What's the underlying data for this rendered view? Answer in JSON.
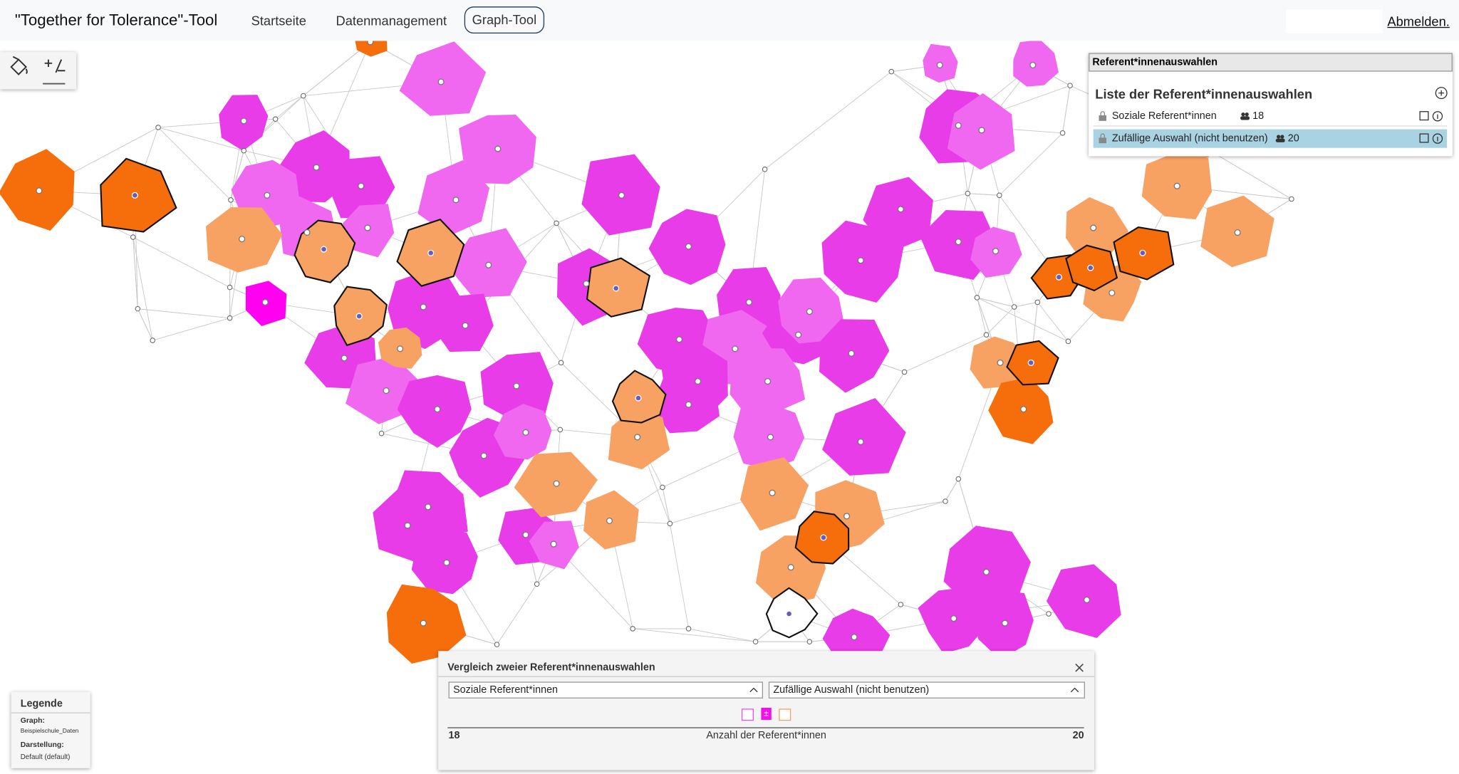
{
  "header": {
    "title": "\"Together for Tolerance\"-Tool",
    "nav": [
      "Startseite",
      "Datenmanagement",
      "Graph-Tool"
    ],
    "logout": "Abmelden."
  },
  "selection_panel": {
    "title": "Referent*innenauswahlen",
    "list_title": "Liste der Referent*innenauswahlen",
    "items": [
      {
        "name": "Soziale Referent*innen",
        "count": 18
      },
      {
        "name": "Zufällige Auswahl (nicht benutzen)",
        "count": 20
      }
    ]
  },
  "comparison": {
    "title": "Vergleich zweier Referent*innenauswahlen",
    "left": "Soziale Referent*innen",
    "right": "Zufällige Auswahl (nicht benutzen)",
    "symbol": "±",
    "left_count": 18,
    "axis_label": "Anzahl der Referent*innen",
    "right_count": 20
  },
  "legend": {
    "title": "Legende",
    "graph_label": "Graph:",
    "graph": "Beispielschule_Daten",
    "view_label": "Darstellung:",
    "view": "Default (default)"
  }
}
